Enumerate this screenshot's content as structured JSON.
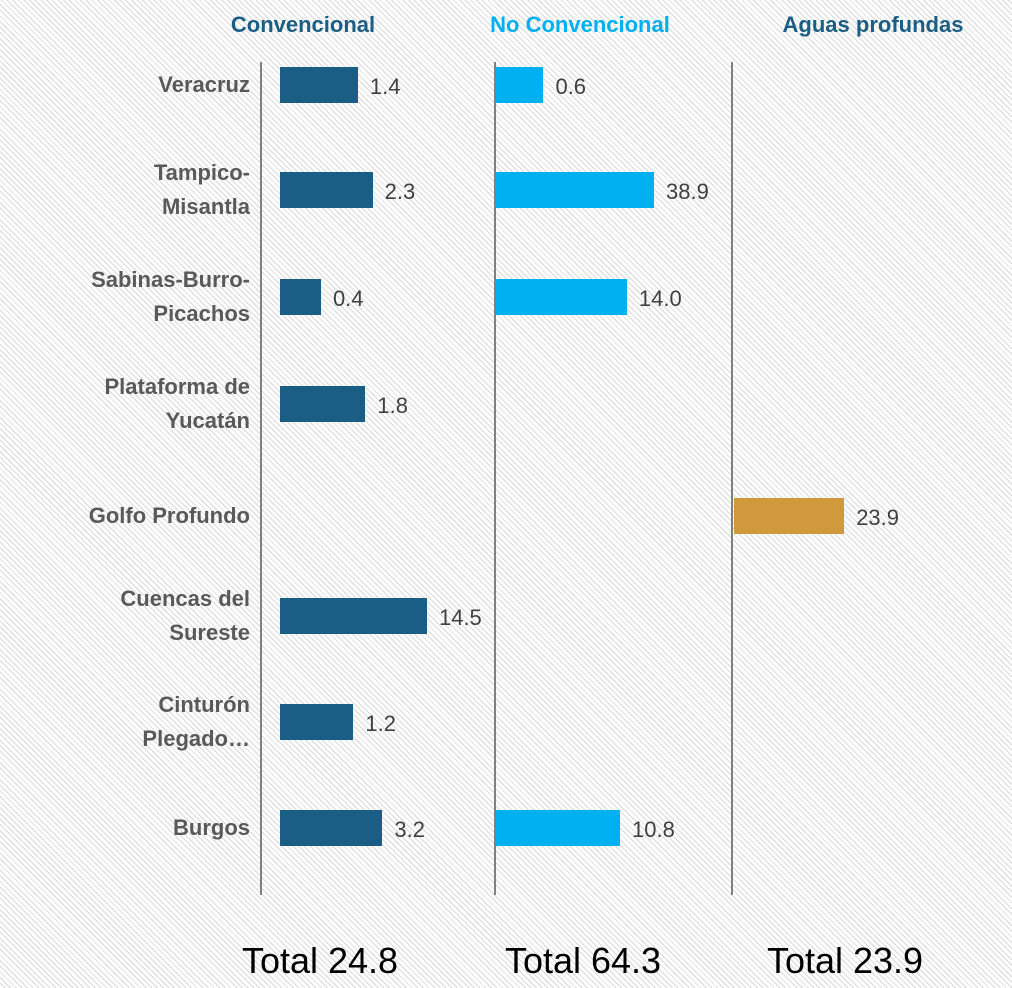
{
  "chart_data": {
    "type": "bar",
    "orientation": "horizontal",
    "log_scale": true,
    "categories": [
      "Veracruz",
      "Tampico-\nMisantla",
      "Sabinas-Burro-\nPicachos",
      "Plataforma de\nYucatán",
      "Golfo Profundo",
      "Cuencas del\nSureste",
      "Cinturón\nPlegado…",
      "Burgos"
    ],
    "series": [
      {
        "name": "Convencional",
        "color": "#1a5e85",
        "values": [
          1.4,
          2.3,
          0.4,
          1.8,
          null,
          14.5,
          1.2,
          3.2
        ],
        "xlim": [
          0.1,
          100
        ]
      },
      {
        "name": "No Convencional",
        "color": "#00b0f0",
        "values": [
          0.6,
          38.9,
          14.0,
          null,
          null,
          null,
          null,
          10.8
        ],
        "value_labels": [
          "0.6",
          "38.9",
          "14.0",
          null,
          null,
          null,
          null,
          "10.8"
        ],
        "xlim": [
          0.1,
          100
        ]
      },
      {
        "name": "Aguas profundas",
        "color": "#d09a3c",
        "values": [
          null,
          null,
          null,
          null,
          23.9,
          null,
          null,
          null
        ],
        "xlim": [
          0.1,
          100
        ]
      }
    ],
    "header_colors": [
      "#1a5e85",
      "#00b0f0",
      "#1a5e85"
    ],
    "totals": [
      "Total 24.8",
      "Total 64.3",
      "Total 23.9"
    ]
  }
}
